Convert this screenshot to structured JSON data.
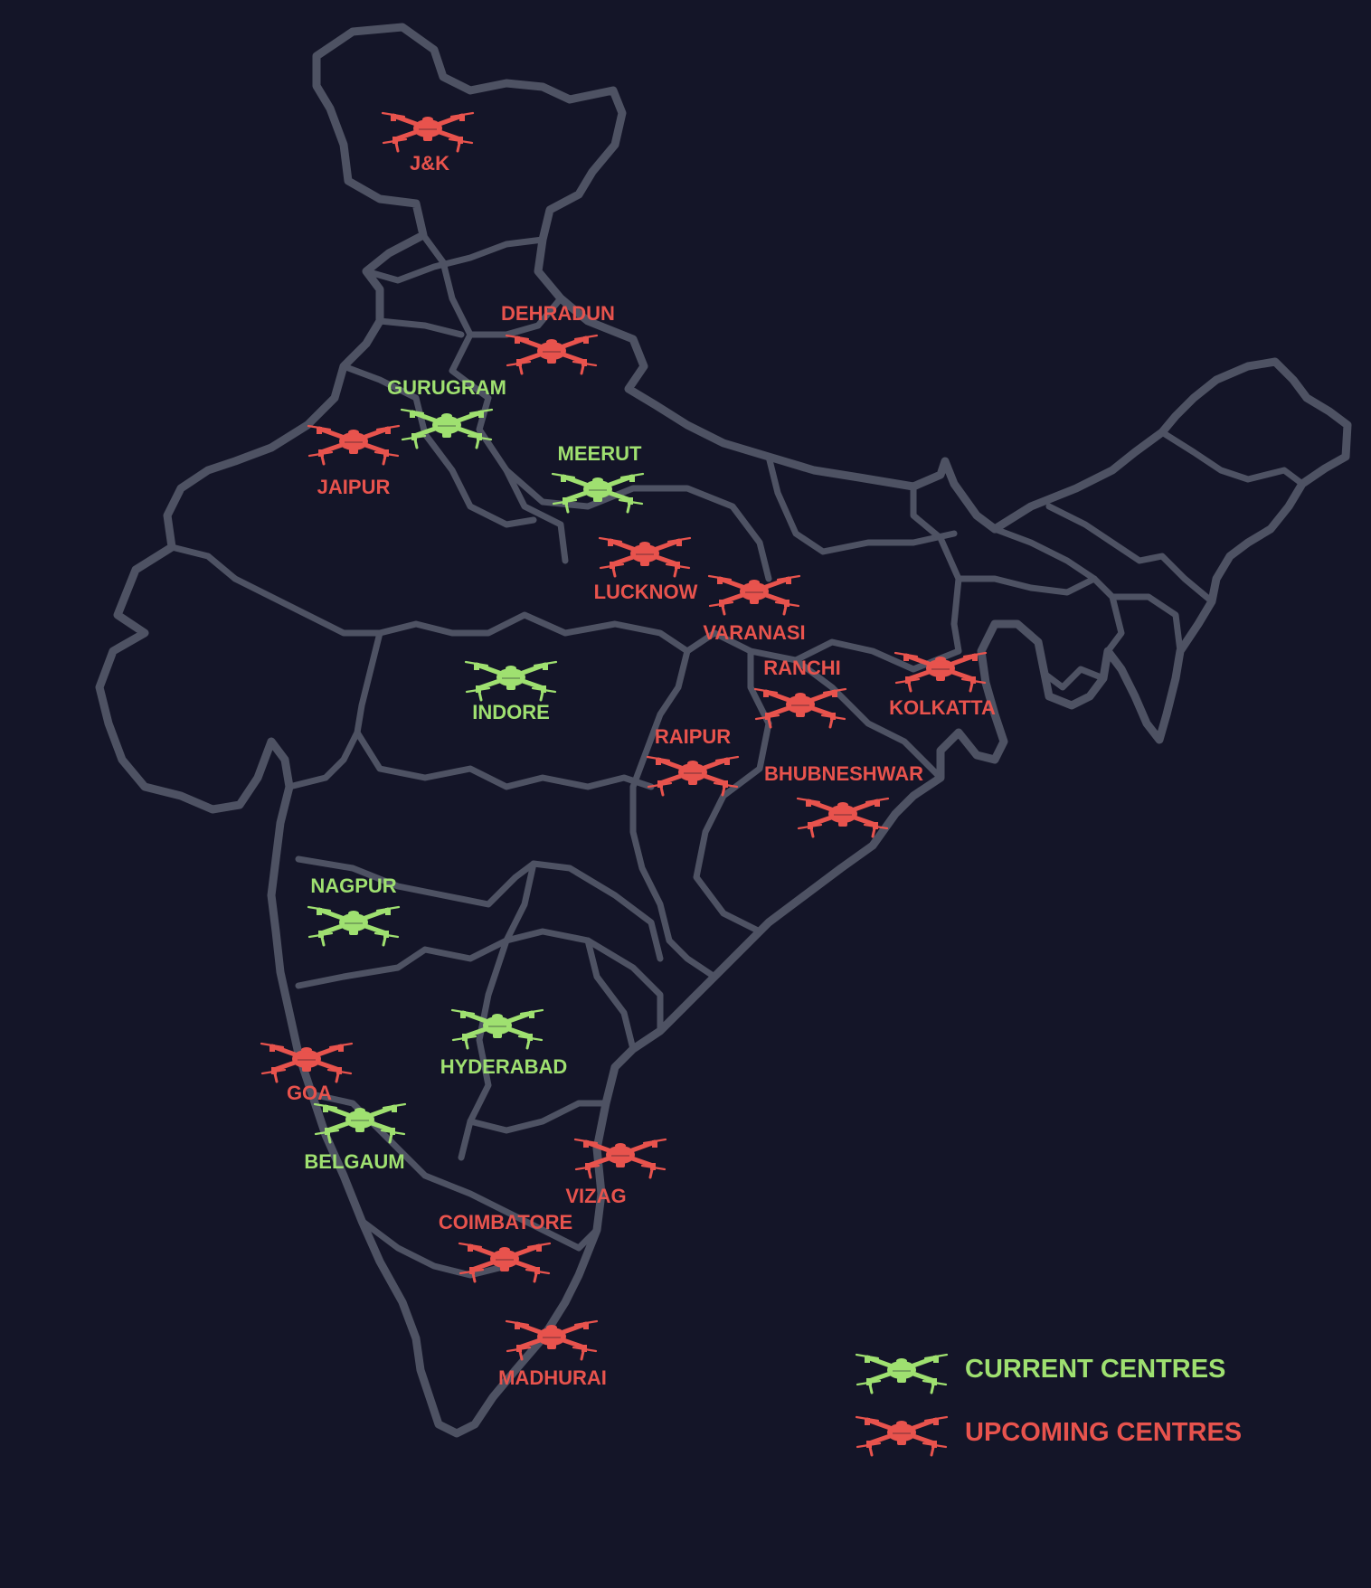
{
  "colors": {
    "background": "#141528",
    "current": "#9fe070",
    "upcoming": "#e8534d",
    "map_lines": "#4e5263"
  },
  "icon": "drone-icon",
  "cities": [
    {
      "name": "J&K",
      "status": "upcoming"
    },
    {
      "name": "DEHRADUN",
      "status": "upcoming"
    },
    {
      "name": "GURUGRAM",
      "status": "current"
    },
    {
      "name": "JAIPUR",
      "status": "upcoming"
    },
    {
      "name": "MEERUT",
      "status": "current"
    },
    {
      "name": "LUCKNOW",
      "status": "upcoming"
    },
    {
      "name": "VARANASI",
      "status": "upcoming"
    },
    {
      "name": "RANCHI",
      "status": "upcoming"
    },
    {
      "name": "KOLKATTA",
      "status": "upcoming"
    },
    {
      "name": "INDORE",
      "status": "current"
    },
    {
      "name": "RAIPUR",
      "status": "upcoming"
    },
    {
      "name": "BHUBNESHWAR",
      "status": "upcoming"
    },
    {
      "name": "NAGPUR",
      "status": "current"
    },
    {
      "name": "HYDERABAD",
      "status": "current"
    },
    {
      "name": "GOA",
      "status": "upcoming"
    },
    {
      "name": "BELGAUM",
      "status": "current"
    },
    {
      "name": "VIZAG",
      "status": "upcoming"
    },
    {
      "name": "COIMBATORE",
      "status": "upcoming"
    },
    {
      "name": "MADHURAI",
      "status": "upcoming"
    }
  ],
  "legend": {
    "current_label": "CURRENT CENTRES",
    "upcoming_label": "UPCOMING CENTRES"
  }
}
